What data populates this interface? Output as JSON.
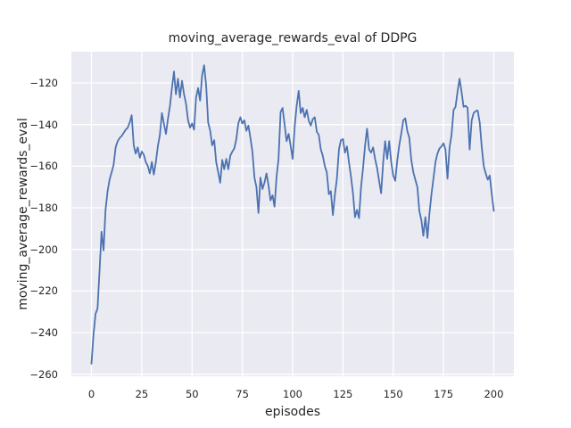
{
  "colors": {
    "figure_background": "#ffffff",
    "axes_background": "#eaeaf2",
    "grid": "#ffffff",
    "line": "#4c72b0",
    "text": "#262626"
  },
  "chart_data": {
    "type": "line",
    "title": "moving_average_rewards_eval of DDPG",
    "xlabel": "episodes",
    "ylabel": "moving_average_rewards_eval",
    "style": "seaborn-darkgrid",
    "grid": true,
    "legend": "none",
    "xlim": [
      -10,
      210
    ],
    "ylim": [
      -261,
      -105
    ],
    "x_ticks": [
      0,
      25,
      50,
      75,
      100,
      125,
      150,
      175,
      200
    ],
    "y_ticks": [
      -120,
      -140,
      -160,
      -180,
      -200,
      -220,
      -240,
      -260
    ],
    "series": [
      {
        "name": "moving_average_rewards_eval",
        "color": "#4c72b0",
        "x_start": 0,
        "x_step": 1,
        "values": [
          -255,
          -241,
          -231,
          -228.5,
          -210,
          -191.5,
          -200.5,
          -181,
          -172,
          -166.5,
          -163,
          -159.5,
          -151,
          -148,
          -146.5,
          -145.5,
          -144,
          -142.5,
          -141.5,
          -139,
          -135.5,
          -150,
          -154,
          -151,
          -156,
          -153,
          -154.5,
          -158,
          -160,
          -163.5,
          -158,
          -164,
          -158,
          -150.5,
          -145,
          -134.5,
          -139.5,
          -144.5,
          -137.5,
          -131,
          -122.5,
          -114.5,
          -125.5,
          -118,
          -127,
          -119,
          -125.5,
          -130,
          -138,
          -141.5,
          -139.5,
          -142.5,
          -127,
          -122.5,
          -128.5,
          -116.5,
          -111.5,
          -121.5,
          -139,
          -143,
          -150,
          -147.5,
          -158,
          -163,
          -168,
          -157,
          -161.5,
          -156.5,
          -161.5,
          -155,
          -153,
          -151.5,
          -147,
          -139.5,
          -136.5,
          -139.5,
          -138,
          -143,
          -140.5,
          -146.5,
          -153,
          -165.5,
          -170,
          -182.5,
          -165.5,
          -171,
          -168,
          -163.5,
          -169,
          -176.5,
          -174,
          -179.5,
          -165,
          -156.5,
          -134,
          -132,
          -140,
          -148,
          -144.5,
          -150,
          -156.5,
          -141,
          -131,
          -123.8,
          -134.5,
          -132,
          -136.5,
          -133,
          -138,
          -140.5,
          -137.5,
          -136.5,
          -143.5,
          -145,
          -152,
          -155,
          -160,
          -163,
          -173.5,
          -172,
          -183.5,
          -174,
          -166,
          -152,
          -147.5,
          -147,
          -153.5,
          -150.5,
          -158,
          -165,
          -173,
          -184.5,
          -181,
          -185,
          -170,
          -161,
          -150,
          -142,
          -152,
          -153.5,
          -151,
          -156.5,
          -161,
          -167,
          -173,
          -158,
          -148,
          -156.5,
          -148,
          -158,
          -164.5,
          -167,
          -157.5,
          -150,
          -144.5,
          -138,
          -137,
          -143,
          -146.5,
          -157,
          -163,
          -166.5,
          -170,
          -181.5,
          -186,
          -193.5,
          -184.5,
          -194.5,
          -183,
          -173.5,
          -166,
          -158,
          -154,
          -151.5,
          -150.5,
          -149,
          -152,
          -166,
          -151,
          -145,
          -133,
          -131.5,
          -124,
          -118,
          -124.5,
          -131.5,
          -131,
          -132,
          -152,
          -138,
          -134.5,
          -133.5,
          -133.3,
          -139,
          -150.5,
          -160,
          -163.5,
          -166.5,
          -164.5,
          -173.5,
          -181.5
        ]
      }
    ]
  }
}
